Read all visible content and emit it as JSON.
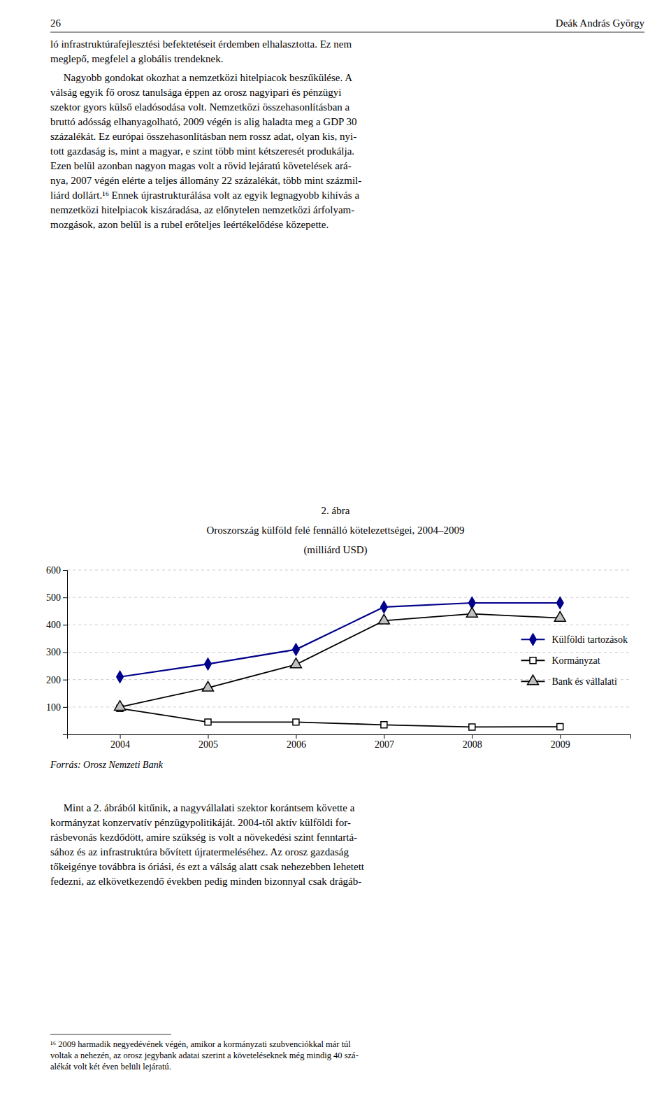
{
  "header_left": "26",
  "header_right": "Deák András György",
  "paragraphs_before": [
    "ló infrastruktúrafejlesztési befektetéseit érdemben elhalasztotta. Ez nem\nmeglepő, megfelel a globális trendeknek.",
    "     Nagyobb gondokat okozhat a nemzetközi hitelpiacok beszűkülése. A\nválság egyik fő orosz tanulsága éppen az orosz nagyipari és pénzügyi\nszektor gyors külső eladósodása volt. Nemzetközi összehasonlításban a\nbruttó adósság elhanyagolható, 2009 végén is alig haladta meg a GDP 30\nszázalékát. Ez európai összehasonlításban nem rossz adat, olyan kis, nyi-\ntott gazdaság is, mint a magyar, e szint több mint kétszeresét produkálja.\nEzen belül azonban nagyon magas volt a rövid lejáratú követelések ará-\nnya, 2007 végén elérte a teljes állomány 22 százalékát, több mint százmil-\nliárd dollárt.¹⁶ Ennek újrastrukturálása volt az egyik legnagyobb kihívás a\nnemzetközi hitelpiacok kiszáradása, az előnytelen nemzetközi árfolyam-\nmozgások, azon belül is a rubel erőteljes leértékelődése közepette."
  ],
  "chart_data": {
    "type": "line",
    "title": [
      "2. ábra",
      "Oroszország külföld felé fennálló kötelezettségei, 2004–2009",
      "(milliárd USD)"
    ],
    "x": [
      2004,
      2005,
      2006,
      2007,
      2008,
      2009
    ],
    "xlim": [
      2003.4,
      2009.8
    ],
    "xticks": [
      2004,
      2005,
      2006,
      2007,
      2008,
      2009
    ],
    "ylim": [
      0,
      600
    ],
    "yticks": [
      100,
      200,
      300,
      400,
      500,
      600
    ],
    "grid": true,
    "legend": "right",
    "series": [
      {
        "name": "Külföldi tartozások",
        "color": "#00008B",
        "marker": "diamond",
        "values": [
          210,
          257,
          310,
          465,
          480,
          480
        ]
      },
      {
        "name": "Kormányzat",
        "color": "#000000",
        "marker": "square",
        "values": [
          95,
          45,
          45,
          35,
          27,
          28
        ]
      },
      {
        "name": "Bank és vállalati",
        "color": "#000000",
        "marker": "triangle",
        "values": [
          100,
          170,
          255,
          415,
          440,
          425
        ]
      }
    ]
  },
  "source": "Forrás: Orosz Nemzeti Bank",
  "paragraphs_after": [
    "     Mint a 2. ábrából kitűnik, a nagyvállalati szektor korántsem követte a\nkormányzat konzervatív pénzügypolitikáját. 2004-től aktív külföldi for-\nrásbevonás kezdődött, amire szükség is volt a növekedési szint fenntartá-\nsához és az infrastruktúra bővített újratermeléséhez. Az orosz gazdaság\ntőkeigénye továbbra is óriási, és ezt a válság alatt csak nehezebben lehetett\nfedezni, az elkövetkezendő években pedig minden bizonnyal csak drágáb-"
  ],
  "footnote": "¹⁶ 2009 harmadik negyedévének végén, amikor a kormányzati szubvenciókkal már túl\nvoltak a nehezén, az orosz jegybank adatai szerint a követeléseknek még mindig 40 szá-\nalékát volt két éven belüli lejáratú."
}
